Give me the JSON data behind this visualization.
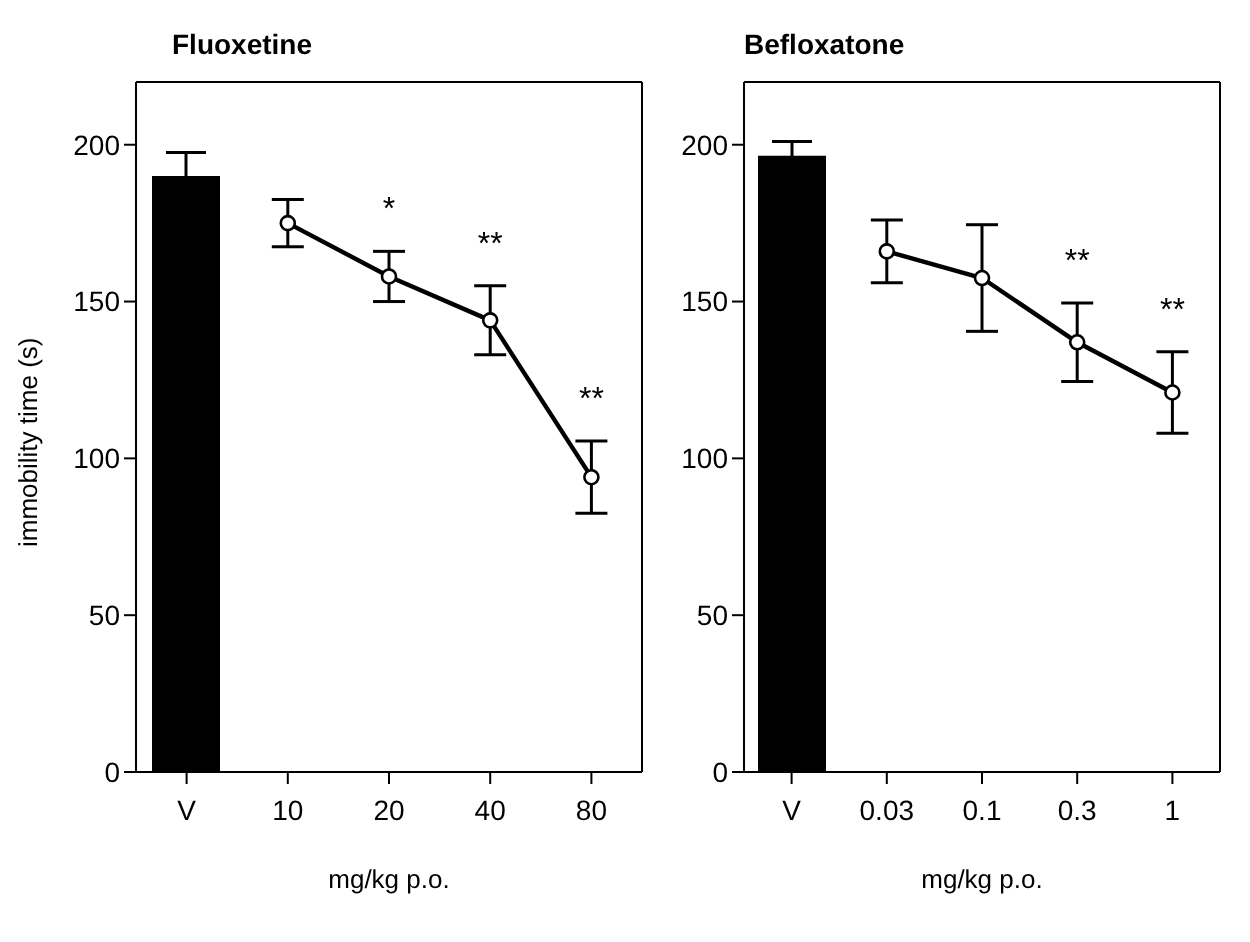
{
  "chart_data": [
    {
      "type": "line",
      "title": "Fluoxetine",
      "xlabel": "mg/kg p.o.",
      "ylabel": "immobility time (s)",
      "categories": [
        "V",
        "10",
        "20",
        "40",
        "80"
      ],
      "ylim": [
        0,
        220
      ],
      "yticks": [
        0,
        50,
        100,
        150,
        200
      ],
      "grid": false,
      "legend": false,
      "marker": "circle",
      "series": [
        {
          "type": "bar",
          "color": "#000000",
          "values": [
            190,
            null,
            null,
            null,
            null
          ],
          "errors": [
            7.5,
            null,
            null,
            null,
            null
          ]
        },
        {
          "color": "#000000",
          "values": [
            null,
            175,
            158,
            144,
            94
          ],
          "errors": [
            null,
            7.5,
            8,
            11,
            11.5
          ]
        }
      ],
      "annotations": [
        "*",
        "**",
        "**"
      ]
    },
    {
      "type": "line",
      "title": "Befloxatone",
      "xlabel": "mg/kg p.o.",
      "categories": [
        "V",
        "0.03",
        "0.1",
        "0.3",
        "1"
      ],
      "ylim": [
        0,
        220
      ],
      "yticks": [
        0,
        50,
        100,
        150,
        200
      ],
      "grid": false,
      "legend": false,
      "marker": "circle",
      "series": [
        {
          "type": "bar",
          "color": "#000000",
          "values": [
            196.5,
            null,
            null,
            null,
            null
          ],
          "errors": [
            4.5,
            null,
            null,
            null,
            null
          ]
        },
        {
          "color": "#000000",
          "values": [
            null,
            166,
            157.5,
            137,
            121
          ],
          "errors": [
            null,
            10,
            17,
            12.5,
            13
          ]
        }
      ],
      "annotations": [
        "**",
        "**"
      ]
    }
  ]
}
